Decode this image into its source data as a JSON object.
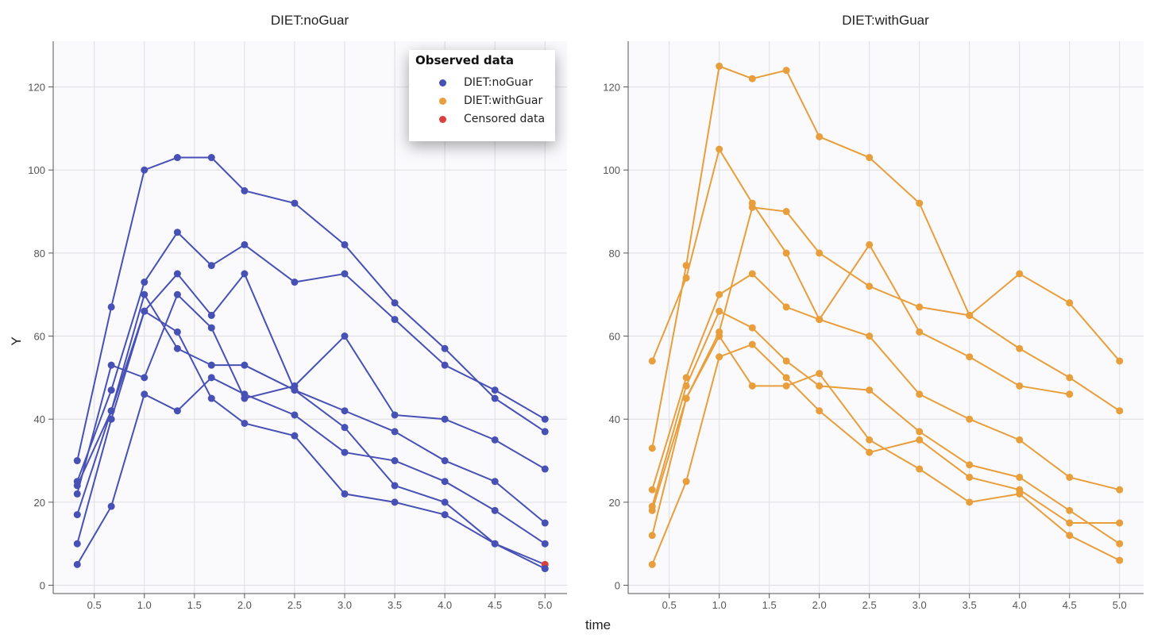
{
  "chart_data": [
    {
      "type": "line",
      "title": "DIET:noGuar",
      "xlabel": "time",
      "ylabel": "Y",
      "xlim": [
        0.09,
        5.22
      ],
      "ylim": [
        -2,
        131
      ],
      "xticks": [
        "0.5",
        "1.0",
        "1.5",
        "2.0",
        "2.5",
        "3.0",
        "3.5",
        "4.0",
        "4.5",
        "5.0"
      ],
      "yticks": [
        "0",
        "20",
        "40",
        "60",
        "80",
        "100",
        "120"
      ],
      "grid": true,
      "color": "#4750b5",
      "x": [
        0.33,
        0.67,
        1.0,
        1.33,
        1.67,
        2.0,
        2.5,
        3.0,
        3.5,
        4.0,
        4.5,
        5.0
      ],
      "series": [
        {
          "values": [
            30,
            67,
            100,
            103,
            103,
            95,
            92,
            82,
            68,
            57,
            45,
            37
          ]
        },
        {
          "values": [
            25,
            47,
            73,
            85,
            77,
            82,
            73,
            75,
            64,
            53,
            47,
            40
          ]
        },
        {
          "values": [
            10,
            40,
            66,
            75,
            65,
            75,
            47,
            38,
            24,
            20,
            10,
            5
          ],
          "censored_index": 11
        },
        {
          "values": [
            24,
            42,
            70,
            57,
            53,
            53,
            47,
            42,
            37,
            30,
            25,
            15
          ]
        },
        {
          "values": [
            17,
            42,
            66,
            61,
            45,
            39,
            36,
            22,
            20,
            17,
            10,
            4
          ]
        },
        {
          "values": [
            22,
            53,
            50,
            70,
            62,
            45,
            48,
            60,
            41,
            40,
            35,
            28
          ]
        },
        {
          "values": [
            5,
            19,
            46,
            42,
            50,
            46,
            41,
            32,
            30,
            25,
            18,
            10
          ]
        }
      ]
    },
    {
      "type": "line",
      "title": "DIET:withGuar",
      "xlabel": "time",
      "ylabel": "",
      "xlim": [
        0.09,
        5.24
      ],
      "ylim": [
        -2,
        131
      ],
      "xticks": [
        "0.5",
        "1.0",
        "1.5",
        "2.0",
        "2.5",
        "3.0",
        "3.5",
        "4.0",
        "4.5",
        "5.0"
      ],
      "yticks": [
        "0",
        "20",
        "40",
        "60",
        "80",
        "100",
        "120"
      ],
      "grid": true,
      "color": "#e89e3a",
      "x": [
        0.33,
        0.67,
        1.0,
        1.33,
        1.67,
        2.0,
        2.5,
        3.0,
        3.5,
        4.0,
        4.5,
        5.0
      ],
      "series": [
        {
          "values": [
            33,
            77,
            125,
            122,
            124,
            108,
            103,
            92,
            65,
            75,
            68,
            54
          ]
        },
        {
          "values": [
            54,
            74,
            105,
            92,
            80,
            64,
            82,
            61,
            55,
            48,
            46,
            null
          ]
        },
        {
          "values": [
            12,
            45,
            61,
            91,
            90,
            80,
            72,
            67,
            65,
            57,
            50,
            42
          ]
        },
        {
          "values": [
            23,
            50,
            70,
            75,
            67,
            64,
            60,
            46,
            40,
            35,
            26,
            23
          ]
        },
        {
          "values": [
            18,
            45,
            60,
            48,
            48,
            51,
            35,
            28,
            20,
            22,
            12,
            6
          ]
        },
        {
          "values": [
            19,
            48,
            66,
            62,
            54,
            48,
            47,
            37,
            29,
            26,
            18,
            10
          ]
        },
        {
          "values": [
            5,
            25,
            55,
            58,
            50,
            42,
            32,
            35,
            26,
            23,
            15,
            15
          ]
        }
      ]
    }
  ],
  "legend": {
    "title": "Observed data",
    "placement": "top-right of left panel",
    "items": [
      {
        "label": "DIET:noGuar",
        "color": "#4750b5"
      },
      {
        "label": "DIET:withGuar",
        "color": "#e89e3a"
      },
      {
        "label": "Censored data",
        "color": "#d9413f"
      }
    ]
  },
  "censored_color": "#d9413f"
}
